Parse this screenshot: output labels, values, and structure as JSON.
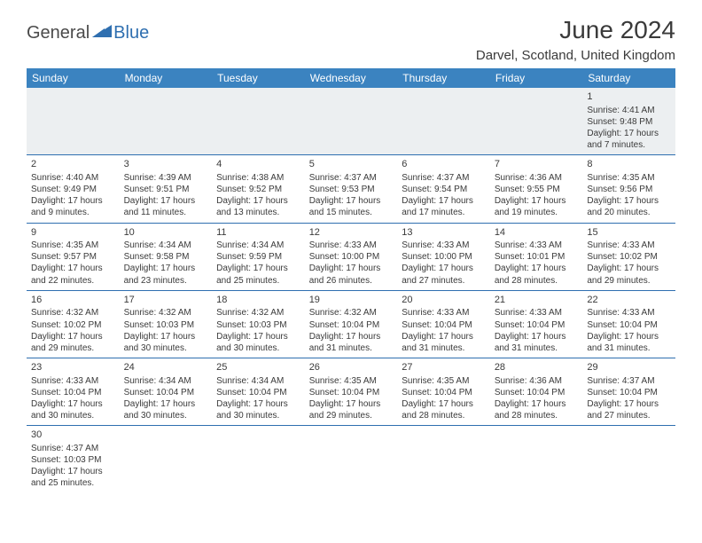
{
  "brand": {
    "part1": "General",
    "part2": "Blue"
  },
  "title": "June 2024",
  "location": "Darvel, Scotland, United Kingdom",
  "colors": {
    "header_bg": "#3b83c0",
    "header_fg": "#ffffff",
    "rule": "#2f6fb0",
    "shade_row_bg": "#eceff1",
    "text": "#3a3a3a",
    "logo_blue": "#2f6fb0"
  },
  "weekdays": [
    "Sunday",
    "Monday",
    "Tuesday",
    "Wednesday",
    "Thursday",
    "Friday",
    "Saturday"
  ],
  "weeks": [
    [
      null,
      null,
      null,
      null,
      null,
      null,
      {
        "n": "1",
        "sr": "Sunrise: 4:41 AM",
        "ss": "Sunset: 9:48 PM",
        "d1": "Daylight: 17 hours",
        "d2": "and 7 minutes."
      }
    ],
    [
      {
        "n": "2",
        "sr": "Sunrise: 4:40 AM",
        "ss": "Sunset: 9:49 PM",
        "d1": "Daylight: 17 hours",
        "d2": "and 9 minutes."
      },
      {
        "n": "3",
        "sr": "Sunrise: 4:39 AM",
        "ss": "Sunset: 9:51 PM",
        "d1": "Daylight: 17 hours",
        "d2": "and 11 minutes."
      },
      {
        "n": "4",
        "sr": "Sunrise: 4:38 AM",
        "ss": "Sunset: 9:52 PM",
        "d1": "Daylight: 17 hours",
        "d2": "and 13 minutes."
      },
      {
        "n": "5",
        "sr": "Sunrise: 4:37 AM",
        "ss": "Sunset: 9:53 PM",
        "d1": "Daylight: 17 hours",
        "d2": "and 15 minutes."
      },
      {
        "n": "6",
        "sr": "Sunrise: 4:37 AM",
        "ss": "Sunset: 9:54 PM",
        "d1": "Daylight: 17 hours",
        "d2": "and 17 minutes."
      },
      {
        "n": "7",
        "sr": "Sunrise: 4:36 AM",
        "ss": "Sunset: 9:55 PM",
        "d1": "Daylight: 17 hours",
        "d2": "and 19 minutes."
      },
      {
        "n": "8",
        "sr": "Sunrise: 4:35 AM",
        "ss": "Sunset: 9:56 PM",
        "d1": "Daylight: 17 hours",
        "d2": "and 20 minutes."
      }
    ],
    [
      {
        "n": "9",
        "sr": "Sunrise: 4:35 AM",
        "ss": "Sunset: 9:57 PM",
        "d1": "Daylight: 17 hours",
        "d2": "and 22 minutes."
      },
      {
        "n": "10",
        "sr": "Sunrise: 4:34 AM",
        "ss": "Sunset: 9:58 PM",
        "d1": "Daylight: 17 hours",
        "d2": "and 23 minutes."
      },
      {
        "n": "11",
        "sr": "Sunrise: 4:34 AM",
        "ss": "Sunset: 9:59 PM",
        "d1": "Daylight: 17 hours",
        "d2": "and 25 minutes."
      },
      {
        "n": "12",
        "sr": "Sunrise: 4:33 AM",
        "ss": "Sunset: 10:00 PM",
        "d1": "Daylight: 17 hours",
        "d2": "and 26 minutes."
      },
      {
        "n": "13",
        "sr": "Sunrise: 4:33 AM",
        "ss": "Sunset: 10:00 PM",
        "d1": "Daylight: 17 hours",
        "d2": "and 27 minutes."
      },
      {
        "n": "14",
        "sr": "Sunrise: 4:33 AM",
        "ss": "Sunset: 10:01 PM",
        "d1": "Daylight: 17 hours",
        "d2": "and 28 minutes."
      },
      {
        "n": "15",
        "sr": "Sunrise: 4:33 AM",
        "ss": "Sunset: 10:02 PM",
        "d1": "Daylight: 17 hours",
        "d2": "and 29 minutes."
      }
    ],
    [
      {
        "n": "16",
        "sr": "Sunrise: 4:32 AM",
        "ss": "Sunset: 10:02 PM",
        "d1": "Daylight: 17 hours",
        "d2": "and 29 minutes."
      },
      {
        "n": "17",
        "sr": "Sunrise: 4:32 AM",
        "ss": "Sunset: 10:03 PM",
        "d1": "Daylight: 17 hours",
        "d2": "and 30 minutes."
      },
      {
        "n": "18",
        "sr": "Sunrise: 4:32 AM",
        "ss": "Sunset: 10:03 PM",
        "d1": "Daylight: 17 hours",
        "d2": "and 30 minutes."
      },
      {
        "n": "19",
        "sr": "Sunrise: 4:32 AM",
        "ss": "Sunset: 10:04 PM",
        "d1": "Daylight: 17 hours",
        "d2": "and 31 minutes."
      },
      {
        "n": "20",
        "sr": "Sunrise: 4:33 AM",
        "ss": "Sunset: 10:04 PM",
        "d1": "Daylight: 17 hours",
        "d2": "and 31 minutes."
      },
      {
        "n": "21",
        "sr": "Sunrise: 4:33 AM",
        "ss": "Sunset: 10:04 PM",
        "d1": "Daylight: 17 hours",
        "d2": "and 31 minutes."
      },
      {
        "n": "22",
        "sr": "Sunrise: 4:33 AM",
        "ss": "Sunset: 10:04 PM",
        "d1": "Daylight: 17 hours",
        "d2": "and 31 minutes."
      }
    ],
    [
      {
        "n": "23",
        "sr": "Sunrise: 4:33 AM",
        "ss": "Sunset: 10:04 PM",
        "d1": "Daylight: 17 hours",
        "d2": "and 30 minutes."
      },
      {
        "n": "24",
        "sr": "Sunrise: 4:34 AM",
        "ss": "Sunset: 10:04 PM",
        "d1": "Daylight: 17 hours",
        "d2": "and 30 minutes."
      },
      {
        "n": "25",
        "sr": "Sunrise: 4:34 AM",
        "ss": "Sunset: 10:04 PM",
        "d1": "Daylight: 17 hours",
        "d2": "and 30 minutes."
      },
      {
        "n": "26",
        "sr": "Sunrise: 4:35 AM",
        "ss": "Sunset: 10:04 PM",
        "d1": "Daylight: 17 hours",
        "d2": "and 29 minutes."
      },
      {
        "n": "27",
        "sr": "Sunrise: 4:35 AM",
        "ss": "Sunset: 10:04 PM",
        "d1": "Daylight: 17 hours",
        "d2": "and 28 minutes."
      },
      {
        "n": "28",
        "sr": "Sunrise: 4:36 AM",
        "ss": "Sunset: 10:04 PM",
        "d1": "Daylight: 17 hours",
        "d2": "and 28 minutes."
      },
      {
        "n": "29",
        "sr": "Sunrise: 4:37 AM",
        "ss": "Sunset: 10:04 PM",
        "d1": "Daylight: 17 hours",
        "d2": "and 27 minutes."
      }
    ],
    [
      {
        "n": "30",
        "sr": "Sunrise: 4:37 AM",
        "ss": "Sunset: 10:03 PM",
        "d1": "Daylight: 17 hours",
        "d2": "and 25 minutes."
      },
      null,
      null,
      null,
      null,
      null,
      null
    ]
  ]
}
